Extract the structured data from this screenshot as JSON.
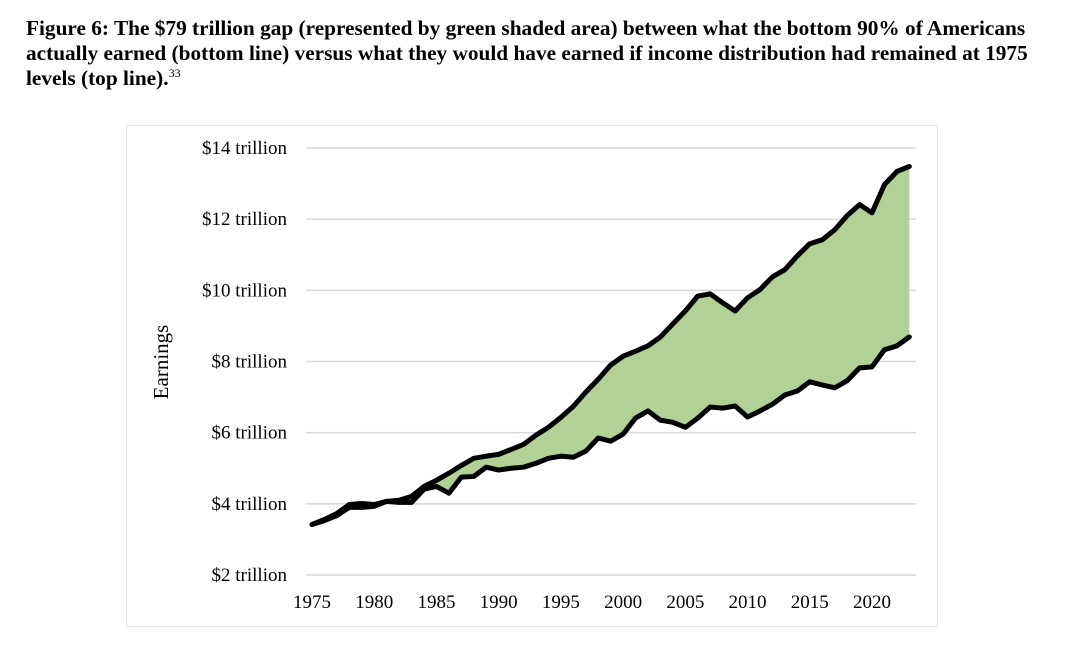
{
  "caption": {
    "text": "Figure 6: The $79 trillion gap (represented by green shaded area) between what the bottom 90% of Americans actually earned (bottom line) versus what they would have earned if income distribution had remained at 1975 levels (top line).",
    "footnote": "33"
  },
  "colors": {
    "gap_fill": "#b1d197",
    "line": "#000000",
    "grid": "#d9d9d9"
  },
  "chart_data": {
    "type": "area",
    "title": "",
    "xlabel": "",
    "ylabel": "Earnings",
    "ylim": [
      2,
      14
    ],
    "xlim": [
      1975,
      2023
    ],
    "grid": true,
    "legend": "none",
    "y_ticks": [
      {
        "value": 14,
        "label": "$14 trillion"
      },
      {
        "value": 12,
        "label": "$12 trillion"
      },
      {
        "value": 10,
        "label": "$10 trillion"
      },
      {
        "value": 8,
        "label": "$8 trillion"
      },
      {
        "value": 6,
        "label": "$6 trillion"
      },
      {
        "value": 4,
        "label": "$4 trillion"
      },
      {
        "value": 2,
        "label": "$2 trillion"
      }
    ],
    "x_ticks": [
      {
        "value": 1975,
        "label": "1975"
      },
      {
        "value": 1980,
        "label": "1980"
      },
      {
        "value": 1985,
        "label": "1985"
      },
      {
        "value": 1990,
        "label": "1990"
      },
      {
        "value": 1995,
        "label": "1995"
      },
      {
        "value": 2000,
        "label": "2000"
      },
      {
        "value": 2005,
        "label": "2005"
      },
      {
        "value": 2010,
        "label": "2010"
      },
      {
        "value": 2015,
        "label": "2015"
      },
      {
        "value": 2020,
        "label": "2020"
      }
    ],
    "x": [
      1975,
      1976,
      1977,
      1978,
      1979,
      1980,
      1981,
      1982,
      1983,
      1984,
      1985,
      1986,
      1987,
      1988,
      1989,
      1990,
      1991,
      1992,
      1993,
      1994,
      1995,
      1996,
      1997,
      1998,
      1999,
      2000,
      2001,
      2002,
      2003,
      2004,
      2005,
      2006,
      2007,
      2008,
      2009,
      2010,
      2011,
      2012,
      2013,
      2014,
      2015,
      2016,
      2017,
      2018,
      2019,
      2020,
      2021,
      2022,
      2023
    ],
    "series": [
      {
        "name": "Earnings if 1975 income distribution had remained (top line)",
        "values": [
          3.42,
          3.56,
          3.73,
          3.98,
          4.01,
          3.98,
          4.07,
          4.1,
          4.21,
          4.49,
          4.66,
          4.86,
          5.08,
          5.28,
          5.34,
          5.39,
          5.53,
          5.67,
          5.93,
          6.15,
          6.43,
          6.74,
          7.14,
          7.5,
          7.9,
          8.15,
          8.29,
          8.44,
          8.69,
          9.06,
          9.42,
          9.84,
          9.9,
          9.65,
          9.42,
          9.79,
          10.02,
          10.38,
          10.58,
          10.97,
          11.31,
          11.42,
          11.7,
          12.1,
          12.41,
          12.18,
          12.97,
          13.34,
          13.48
        ]
      },
      {
        "name": "What the bottom 90% actually earned (bottom line)",
        "values": [
          3.42,
          3.53,
          3.67,
          3.9,
          3.9,
          3.93,
          4.07,
          4.04,
          4.04,
          4.41,
          4.49,
          4.3,
          4.75,
          4.77,
          5.03,
          4.95,
          5.0,
          5.03,
          5.14,
          5.28,
          5.34,
          5.31,
          5.48,
          5.85,
          5.76,
          5.96,
          6.41,
          6.61,
          6.35,
          6.29,
          6.15,
          6.41,
          6.72,
          6.69,
          6.75,
          6.44,
          6.61,
          6.8,
          7.06,
          7.17,
          7.43,
          7.34,
          7.26,
          7.46,
          7.82,
          7.85,
          8.33,
          8.44,
          8.69
        ]
      }
    ],
    "annotation": "Green shaded area between lines represents the $79 trillion gap"
  }
}
